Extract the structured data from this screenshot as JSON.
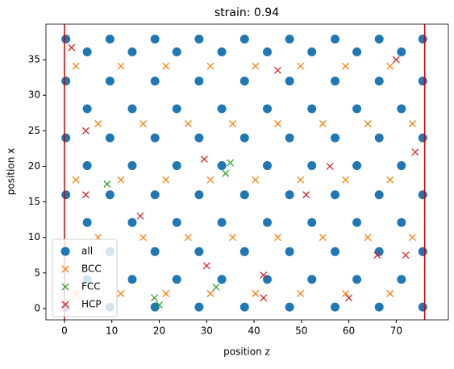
{
  "chart_data": {
    "type": "scatter",
    "title": "strain: 0.94",
    "x_label": "position z",
    "y_label": "position x",
    "xlim": [
      -3.9,
      81
    ],
    "ylim": [
      -1.6,
      40
    ],
    "xticks": [
      0,
      10,
      20,
      30,
      40,
      50,
      60,
      70
    ],
    "yticks": [
      0,
      5,
      10,
      15,
      20,
      25,
      30,
      35
    ],
    "vlines": [
      0,
      76
    ],
    "vline_color": "#d00000",
    "legend": "lower left",
    "series": [
      {
        "name": "all",
        "color": "#1f77b4",
        "marker": "circle",
        "x": [
          0.3,
          9.6,
          19.1,
          28.4,
          38.0,
          47.5,
          57.1,
          66.4,
          75.6,
          4.8,
          14.3,
          23.7,
          33.2,
          42.8,
          52.2,
          61.7,
          71.1,
          0.3,
          9.6,
          19.1,
          28.4,
          38.0,
          47.5,
          57.1,
          66.4,
          75.6,
          4.8,
          14.3,
          23.7,
          33.2,
          42.8,
          52.2,
          61.7,
          71.1,
          0.3,
          9.6,
          19.1,
          28.4,
          38.0,
          47.5,
          57.1,
          66.4,
          75.6,
          4.8,
          14.3,
          23.7,
          33.2,
          42.8,
          52.2,
          61.7,
          71.1,
          0.3,
          9.6,
          19.1,
          28.4,
          38.0,
          47.5,
          57.1,
          66.4,
          75.6,
          4.8,
          14.3,
          23.7,
          33.2,
          42.8,
          52.2,
          61.7,
          71.1,
          0.3,
          9.6,
          19.1,
          28.4,
          38.0,
          47.5,
          57.1,
          66.4,
          75.6,
          4.8,
          14.3,
          23.7,
          33.2,
          42.8,
          52.2,
          61.7,
          71.1,
          0.3,
          9.6,
          19.1,
          28.4,
          38.0,
          47.5,
          57.1,
          66.4,
          75.6
        ],
        "y": [
          0.2,
          0.2,
          0.2,
          0.2,
          0.2,
          0.2,
          0.2,
          0.2,
          0.2,
          4.1,
          4.1,
          4.1,
          4.1,
          4.1,
          4.1,
          4.1,
          4.1,
          8.0,
          8.0,
          8.0,
          8.0,
          8.0,
          8.0,
          8.0,
          8.0,
          8.0,
          12.1,
          12.1,
          12.1,
          12.1,
          12.1,
          12.1,
          12.1,
          12.1,
          16.0,
          16.0,
          16.0,
          16.0,
          16.0,
          16.0,
          16.0,
          16.0,
          16.0,
          20.1,
          20.1,
          20.1,
          20.1,
          20.1,
          20.1,
          20.1,
          20.1,
          24.0,
          24.0,
          24.0,
          24.0,
          24.0,
          24.0,
          24.0,
          24.0,
          24.0,
          28.1,
          28.1,
          28.1,
          28.1,
          28.1,
          28.1,
          28.1,
          28.1,
          32.0,
          32.0,
          32.0,
          32.0,
          32.0,
          32.0,
          32.0,
          32.0,
          32.0,
          36.1,
          36.1,
          36.1,
          36.1,
          36.1,
          36.1,
          36.1,
          36.1,
          37.9,
          37.9,
          37.9,
          37.9,
          37.9,
          37.9,
          37.9,
          37.9,
          37.9
        ]
      },
      {
        "name": "BCC",
        "color": "#ff7f0e",
        "marker": "x",
        "x": [
          2.4,
          11.9,
          21.4,
          30.8,
          40.3,
          49.8,
          59.3,
          68.7,
          7.1,
          16.6,
          26.1,
          35.5,
          45,
          54.5,
          64,
          73.4,
          2.4,
          11.9,
          21.4,
          30.8,
          40.3,
          49.8,
          59.3,
          68.7,
          7.1,
          16.6,
          26.1,
          35.5,
          45,
          54.5,
          64,
          73.4,
          2.4,
          11.9,
          21.4,
          30.8,
          40.3,
          49.8,
          59.3,
          68.7
        ],
        "y": [
          2.1,
          2.1,
          2.1,
          2.1,
          2.1,
          2.1,
          2.1,
          2.1,
          10.0,
          10.0,
          10.0,
          10.0,
          10.0,
          10.0,
          10.0,
          10.0,
          18.1,
          18.1,
          18.1,
          18.1,
          18.1,
          18.1,
          18.1,
          18.1,
          26.0,
          26.0,
          26.0,
          26.0,
          26.0,
          26.0,
          26.0,
          26.0,
          34.1,
          34.1,
          34.1,
          34.1,
          34.1,
          34.1,
          34.1,
          34.1
        ]
      },
      {
        "name": "FCC",
        "color": "#2ca02c",
        "marker": "x",
        "x": [
          9,
          34,
          35,
          32,
          20,
          19
        ],
        "y": [
          17.5,
          19,
          20.5,
          3,
          0.5,
          1.5
        ]
      },
      {
        "name": "HCP",
        "color": "#d62728",
        "marker": "x",
        "x": [
          1.5,
          4.5,
          4.5,
          16,
          29.5,
          30,
          42,
          42,
          45,
          51,
          56,
          60,
          66,
          70,
          72,
          74
        ],
        "y": [
          36.7,
          25,
          16,
          13,
          21,
          6,
          1.5,
          4.7,
          33.5,
          16,
          20,
          1.5,
          7.5,
          35,
          7.5,
          22
        ]
      }
    ]
  }
}
